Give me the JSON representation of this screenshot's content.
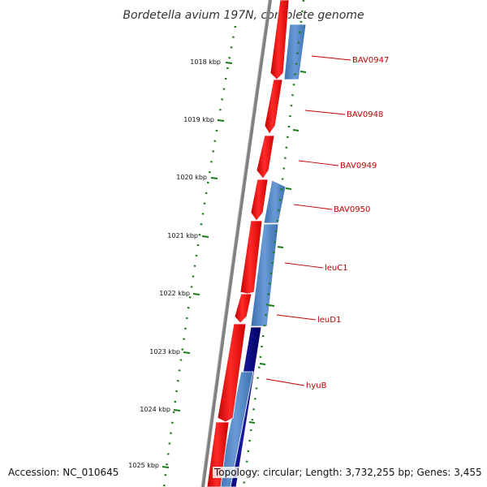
{
  "title": "Bordetella avium 197N, complete genome",
  "footer": {
    "accession": "Accession: NC_010645",
    "topology": "Topology: circular; Length: 3,732,255 bp; Genes: 3,455"
  },
  "colors": {
    "forward_gene": "#ff0000",
    "reverse_gene_light": "#4a86c8",
    "reverse_gene_dark": "#000080",
    "backbone": "#808080",
    "ticks": "#1a7a1a",
    "gene_label": "#c00000"
  },
  "kbp_ticks": [
    {
      "label": "1018 kbp"
    },
    {
      "label": "1019 kbp"
    },
    {
      "label": "1020 kbp"
    },
    {
      "label": "1021 kbp"
    },
    {
      "label": "1022 kbp"
    },
    {
      "label": "1023 kbp"
    },
    {
      "label": "1024 kbp"
    },
    {
      "label": "1025 kbp"
    }
  ],
  "gene_labels": [
    {
      "name": "BAV0947"
    },
    {
      "name": "BAV0948"
    },
    {
      "name": "BAV0949"
    },
    {
      "name": "BAV0950"
    },
    {
      "name": "leuC1"
    },
    {
      "name": "leuD1"
    },
    {
      "name": "hyuB"
    }
  ]
}
